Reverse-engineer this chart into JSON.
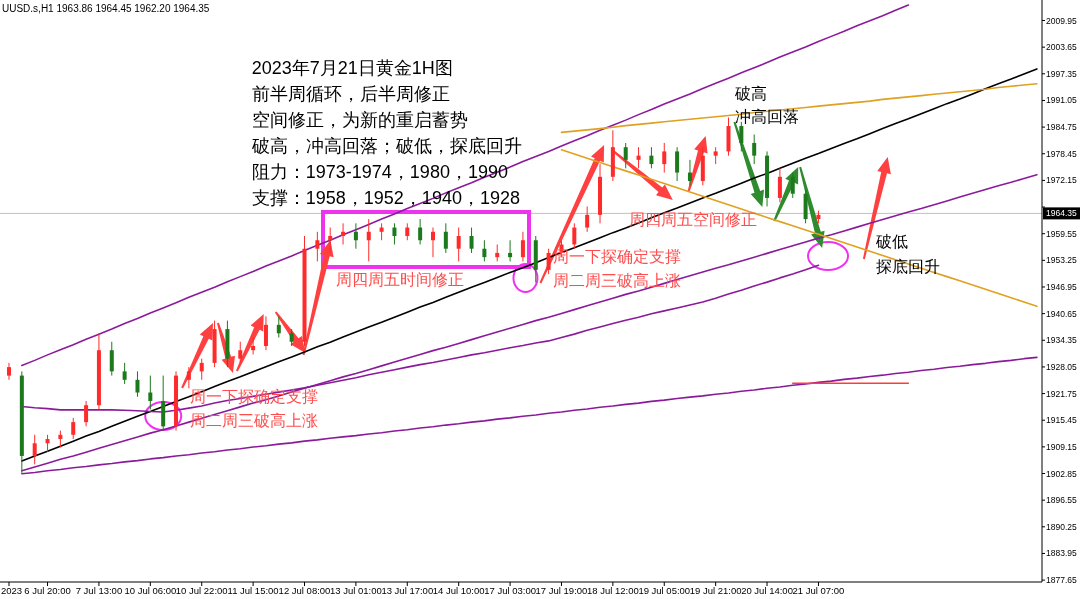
{
  "chart_data": {
    "type": "candlestick",
    "categories": [
      "2023",
      null,
      null,
      "6 Jul 20:00",
      null,
      null,
      null,
      "7 Jul 13:00",
      null,
      null,
      null,
      "10 Jul 06:00",
      null,
      null,
      null,
      "10 Jul 22:00",
      null,
      null,
      null,
      "11 Jul 15:00",
      null,
      null,
      null,
      "12 Jul 08:00",
      null,
      null,
      null,
      "13 Jul 01:00",
      null,
      null,
      null,
      "13 Jul 17:00",
      null,
      null,
      null,
      "14 Jul 10:00",
      null,
      null,
      null,
      "17 Jul 03:00",
      null,
      null,
      null,
      "17 Jul 19:00",
      null,
      null,
      null,
      "18 Jul 12:00",
      null,
      null,
      null,
      "19 Jul 05:00",
      null,
      null,
      null,
      "19 Jul 21:00",
      null,
      null,
      null,
      "20 Jul 14:00",
      null,
      null,
      null,
      "21 Jul 07:00",
      null,
      null,
      null,
      null,
      null,
      null,
      null,
      null,
      null,
      null,
      null,
      null,
      null,
      null,
      null,
      null,
      null
    ],
    "ohlc": [
      [
        1926,
        1929,
        1925,
        1928
      ],
      [
        1926,
        1927,
        1903,
        1907
      ],
      [
        1907,
        1912,
        1905,
        1910
      ],
      [
        1910,
        1912,
        1908,
        1911
      ],
      [
        1911,
        1913,
        1909,
        1912
      ],
      [
        1912,
        1916,
        1911,
        1915
      ],
      [
        1915,
        1920,
        1914,
        1919
      ],
      [
        1919,
        1936,
        1918,
        1932
      ],
      [
        1932,
        1934,
        1926,
        1927
      ],
      [
        1927,
        1929,
        1924,
        1925
      ],
      [
        1925,
        1927,
        1921,
        1922
      ],
      [
        1922,
        1926,
        1918,
        1920
      ],
      [
        1920,
        1926,
        1913,
        1914
      ],
      [
        1914,
        1927,
        1913,
        1926
      ],
      [
        1925,
        1928,
        1923,
        1927
      ],
      [
        1927,
        1930,
        1925,
        1929
      ],
      [
        1929,
        1939,
        1928,
        1937
      ],
      [
        1937,
        1939,
        1928,
        1930
      ],
      [
        1930,
        1934,
        1929,
        1932
      ],
      [
        1932,
        1935,
        1931,
        1933
      ],
      [
        1933,
        1940,
        1932,
        1938
      ],
      [
        1938,
        1940,
        1935,
        1936
      ],
      [
        1936,
        1937,
        1933,
        1934
      ],
      [
        1934,
        1959,
        1933,
        1956
      ],
      [
        1956,
        1960,
        1953,
        1958
      ],
      [
        1958,
        1961,
        1955,
        1959
      ],
      [
        1959,
        1962,
        1957,
        1960
      ],
      [
        1960,
        1962,
        1956,
        1958
      ],
      [
        1958,
        1963,
        1953,
        1960
      ],
      [
        1960,
        1962,
        1958,
        1961
      ],
      [
        1961,
        1962,
        1957,
        1959
      ],
      [
        1959,
        1962,
        1958,
        1961
      ],
      [
        1961,
        1963,
        1957,
        1958
      ],
      [
        1958,
        1961,
        1954,
        1960
      ],
      [
        1960,
        1962,
        1955,
        1956
      ],
      [
        1956,
        1961,
        1953,
        1959
      ],
      [
        1959,
        1961,
        1955,
        1956
      ],
      [
        1956,
        1958,
        1953,
        1954
      ],
      [
        1954,
        1957,
        1953,
        1955
      ],
      [
        1955,
        1958,
        1953,
        1954
      ],
      [
        1954,
        1960,
        1953,
        1958
      ],
      [
        1958,
        1959,
        1948,
        1951
      ],
      [
        1951,
        1956,
        1950,
        1955
      ],
      [
        1955,
        1958,
        1954,
        1957
      ],
      [
        1957,
        1962,
        1956,
        1961
      ],
      [
        1961,
        1966,
        1960,
        1964
      ],
      [
        1964,
        1976,
        1962,
        1973
      ],
      [
        1973,
        1984,
        1972,
        1980
      ],
      [
        1980,
        1981,
        1975,
        1977
      ],
      [
        1977,
        1980,
        1975,
        1978
      ],
      [
        1978,
        1980,
        1975,
        1976
      ],
      [
        1976,
        1981,
        1974,
        1979
      ],
      [
        1979,
        1980,
        1972,
        1974
      ],
      [
        1974,
        1977,
        1971,
        1972
      ],
      [
        1972,
        1980,
        1971,
        1978
      ],
      [
        1978,
        1980,
        1976,
        1979
      ],
      [
        1979,
        1987,
        1978,
        1985
      ],
      [
        1985,
        1986,
        1979,
        1981
      ],
      [
        1981,
        1983,
        1976,
        1978
      ],
      [
        1978,
        1979,
        1966,
        1968
      ],
      [
        1968,
        1975,
        1967,
        1973
      ],
      [
        1973,
        1974,
        1968,
        1969
      ],
      [
        1969,
        1970,
        1962,
        1963
      ],
      [
        1963,
        1965,
        1962,
        1964
      ],
      null,
      null,
      null,
      null,
      null,
      null,
      null,
      null,
      null,
      null,
      null,
      null,
      null,
      null,
      null,
      null,
      null
    ],
    "series": [
      {
        "type": "line",
        "color": "#8b1a9b",
        "values": [
          null,
          1928.4,
          1929.6,
          1930.9,
          1932.1,
          1933.3,
          1934.6,
          1935.8,
          1937.0,
          1938.3,
          1939.5,
          1940.8,
          1942.0,
          1943.2,
          1944.5,
          1945.7,
          1946.9,
          1948.2,
          1949.4,
          1950.6,
          1951.9,
          1953.1,
          1954.3,
          1955.6,
          1956.8,
          1958.0,
          1959.3,
          1960.5,
          1961.7,
          1963.0,
          1964.2,
          1965.5,
          1966.7,
          1967.9,
          1969.2,
          1970.4,
          1971.6,
          1972.9,
          1974.1,
          1975.3,
          1976.6,
          1977.8,
          1979.0,
          1980.3,
          1981.5,
          1982.7,
          1984.0,
          1985.2,
          1986.4,
          1987.7,
          1988.9,
          1990.2,
          1991.4,
          1992.6,
          1993.9,
          1995.1,
          1996.3,
          1997.6,
          1998.8,
          2000.0,
          2001.3,
          2002.5,
          2003.7,
          2005.0,
          2006.2,
          2007.4,
          2008.7,
          2009.9,
          2011.1,
          2012.4,
          2013.6,
          null,
          null,
          null,
          null,
          null,
          null,
          null,
          null,
          null,
          null
        ]
      },
      {
        "type": "line",
        "color": "#000000",
        "values": [
          null,
          1905.8,
          1907.0,
          1908.1,
          1909.3,
          1910.5,
          1911.7,
          1912.8,
          1914.0,
          1915.2,
          1916.4,
          1917.5,
          1918.7,
          1919.9,
          1921.0,
          1922.2,
          1923.4,
          1924.6,
          1925.7,
          1926.9,
          1928.1,
          1929.3,
          1930.4,
          1931.6,
          1932.8,
          1933.9,
          1935.1,
          1936.3,
          1937.5,
          1938.6,
          1939.8,
          1941.0,
          1942.2,
          1943.3,
          1944.5,
          1945.7,
          1946.9,
          1948.0,
          1949.2,
          1950.4,
          1951.5,
          1952.7,
          1953.9,
          1955.1,
          1956.2,
          1957.4,
          1958.6,
          1959.8,
          1960.9,
          1962.1,
          1963.3,
          1964.5,
          1965.6,
          1966.8,
          1968.0,
          1969.1,
          1970.3,
          1971.5,
          1972.7,
          1973.8,
          1975.0,
          1976.2,
          1977.4,
          1978.5,
          1979.7,
          1980.9,
          1982.0,
          1983.2,
          1984.4,
          1985.6,
          1986.7,
          1987.9,
          1989.1,
          1990.3,
          1991.4,
          1992.6,
          1993.8,
          1995.0,
          1996.1,
          1997.3,
          1998.5
        ]
      },
      {
        "type": "line",
        "color": "#8b1a9b",
        "values": [
          null,
          1903.5,
          1904.4,
          1905.3,
          1906.2,
          1907.0,
          1907.9,
          1908.8,
          1909.7,
          1910.6,
          1911.5,
          1912.4,
          1913.2,
          1914.1,
          1915.0,
          1915.9,
          1916.8,
          1917.7,
          1918.6,
          1919.5,
          1920.3,
          1921.2,
          1922.1,
          1923.0,
          1923.9,
          1924.8,
          1925.7,
          1926.5,
          1927.4,
          1928.3,
          1929.2,
          1930.1,
          1931.0,
          1931.9,
          1932.7,
          1933.6,
          1934.5,
          1935.4,
          1936.3,
          1937.2,
          1938.1,
          1939.0,
          1939.8,
          1940.7,
          1941.6,
          1942.5,
          1943.4,
          1944.3,
          1945.2,
          1946.0,
          1946.9,
          1947.8,
          1948.7,
          1949.6,
          1950.5,
          1951.4,
          1952.2,
          1953.1,
          1954.0,
          1954.9,
          1955.8,
          1956.7,
          1957.6,
          1958.5,
          1959.3,
          1960.2,
          1961.1,
          1962.0,
          1962.9,
          1963.8,
          1964.7,
          1965.5,
          1966.4,
          1967.3,
          1968.2,
          1969.1,
          1970.0,
          1970.9,
          1971.7,
          1972.6,
          1973.5
        ]
      },
      {
        "type": "line",
        "color": "#8b1a9b",
        "values": [
          null,
          1902.8,
          1903.1,
          1903.5,
          1903.8,
          1904.2,
          1904.5,
          1904.9,
          1905.2,
          1905.6,
          1905.9,
          1906.3,
          1906.6,
          1907.0,
          1907.3,
          1907.7,
          1908.0,
          1908.4,
          1908.7,
          1909.1,
          1909.4,
          1909.8,
          1910.1,
          1910.5,
          1910.8,
          1911.2,
          1911.5,
          1911.8,
          1912.2,
          1912.5,
          1912.9,
          1913.2,
          1913.6,
          1913.9,
          1914.3,
          1914.6,
          1915.0,
          1915.3,
          1915.7,
          1916.0,
          1916.4,
          1916.7,
          1917.1,
          1917.4,
          1917.8,
          1918.1,
          1918.5,
          1918.8,
          1919.2,
          1919.5,
          1919.9,
          1920.2,
          1920.6,
          1920.9,
          1921.2,
          1921.6,
          1921.9,
          1922.3,
          1922.6,
          1923.0,
          1923.3,
          1923.7,
          1924.0,
          1924.4,
          1924.7,
          1925.1,
          1925.4,
          1925.8,
          1926.1,
          1926.5,
          1926.8,
          1927.2,
          1927.5,
          1927.9,
          1928.2,
          1928.6,
          1928.9,
          1929.3,
          1929.6,
          1930.0,
          1930.3
        ]
      },
      {
        "type": "line",
        "color": "#8b1a9b",
        "values": [
          null,
          1918.7,
          1918.4,
          1918.2,
          1917.9,
          1917.9,
          1917.9,
          1917.9,
          1917.9,
          1917.8,
          1917.7,
          1917.5,
          1917.4,
          1917.8,
          1918.3,
          1918.8,
          1919.5,
          1920.1,
          1920.6,
          1921.1,
          1921.6,
          1922.1,
          1922.6,
          1923.1,
          1923.7,
          1924.3,
          1924.9,
          1925.5,
          1926.2,
          1926.8,
          1927.4,
          1928.0,
          1928.6,
          1929.1,
          1929.7,
          1930.3,
          1930.9,
          1931.4,
          1932.0,
          1932.6,
          1933.1,
          1933.7,
          1934.2,
          1935.0,
          1935.8,
          1936.7,
          1937.5,
          1938.3,
          1939.1,
          1939.8,
          1940.6,
          1941.3,
          1942.0,
          1942.7,
          1943.4,
          1944.3,
          1945.3,
          1946.2,
          1947.2,
          1948.1,
          1949.1,
          1950.0,
          1951.0,
          1952.1,
          null,
          null,
          null,
          null,
          null,
          null,
          null,
          null,
          null,
          null,
          null,
          null,
          null,
          null,
          null,
          null,
          null
        ]
      },
      {
        "type": "line",
        "color": "#e0a020",
        "values": [
          null,
          null,
          null,
          null,
          null,
          null,
          null,
          null,
          null,
          null,
          null,
          null,
          null,
          null,
          null,
          null,
          null,
          null,
          null,
          null,
          null,
          null,
          null,
          null,
          null,
          null,
          null,
          null,
          null,
          null,
          null,
          null,
          null,
          null,
          null,
          null,
          null,
          null,
          null,
          null,
          null,
          null,
          null,
          1983.5,
          1983.8,
          1984.1,
          1984.4,
          1984.7,
          1985.1,
          1985.4,
          1985.7,
          1986.0,
          1986.3,
          1986.6,
          1986.9,
          1987.2,
          1987.5,
          1987.8,
          1988.2,
          1988.5,
          1988.8,
          1989.1,
          1989.4,
          1989.7,
          1990.0,
          1990.3,
          1990.6,
          1990.9,
          1991.3,
          1991.6,
          1991.9,
          1992.2,
          1992.5,
          1992.8,
          1993.1,
          1993.4,
          1993.7,
          1994.1,
          1994.4,
          1994.7,
          1995.0
        ]
      },
      {
        "type": "line",
        "color": "#e0a020",
        "values": [
          null,
          null,
          null,
          null,
          null,
          null,
          null,
          null,
          null,
          null,
          null,
          null,
          null,
          null,
          null,
          null,
          null,
          null,
          null,
          null,
          null,
          null,
          null,
          null,
          null,
          null,
          null,
          null,
          null,
          null,
          null,
          null,
          null,
          null,
          null,
          null,
          null,
          null,
          null,
          null,
          null,
          null,
          null,
          1979.4,
          1978.4,
          1977.4,
          1976.4,
          1975.4,
          1974.4,
          1973.4,
          1972.4,
          1971.4,
          1970.4,
          1969.4,
          1968.4,
          1967.4,
          1966.4,
          1965.4,
          1964.4,
          1963.4,
          1962.4,
          1961.4,
          1960.4,
          1959.4,
          1958.4,
          1957.4,
          1956.4,
          1955.4,
          1954.4,
          1953.4,
          1952.4,
          1951.4,
          1950.4,
          1949.4,
          1948.4,
          1947.4,
          1946.4,
          1945.4,
          1944.4,
          1943.4,
          1942.4
        ]
      },
      {
        "type": "line",
        "color": "#ff3b3b",
        "values": [
          null,
          null,
          null,
          null,
          null,
          null,
          null,
          null,
          null,
          null,
          null,
          null,
          null,
          null,
          null,
          null,
          null,
          null,
          null,
          null,
          null,
          null,
          null,
          null,
          null,
          null,
          null,
          null,
          null,
          null,
          null,
          null,
          null,
          null,
          null,
          null,
          null,
          null,
          null,
          null,
          null,
          null,
          null,
          null,
          null,
          null,
          null,
          null,
          null,
          null,
          null,
          null,
          null,
          null,
          null,
          null,
          null,
          null,
          null,
          null,
          null,
          1924.2,
          1924.2,
          1924.2,
          1924.2,
          1924.2,
          1924.2,
          1924.2,
          1924.2,
          1924.2,
          1924.2,
          null,
          null,
          null,
          null,
          null,
          null,
          null,
          null,
          null,
          null
        ]
      }
    ],
    "ref_lines": [
      {
        "axis": "y",
        "value": 1964.35,
        "label": "1964.35",
        "color": "#c0c0c0"
      }
    ],
    "ylim": [
      1877.2,
      2014.8
    ],
    "yticks": [
      1877.65,
      1883.95,
      1890.25,
      1896.55,
      1902.85,
      1909.15,
      1915.45,
      1921.75,
      1928.05,
      1934.35,
      1940.65,
      1946.95,
      1953.25,
      1959.55,
      {
        "value": 1965.85,
        "label": null
      },
      1972.15,
      1978.45,
      1984.75,
      1991.05,
      1997.35,
      2003.65,
      2009.95
    ],
    "annotations": [
      "UUSD.s,H1  1963.86 1964.45 1962.20 1964.35",
      "2023年7月21日黄金1H图",
      "前半周循环，后半周修正",
      "空间修正，为新的重启蓄势",
      "破高，冲高回落；破低，探底回升",
      "阻力：1973-1974，1980，1990",
      "支撑：1958，1952，1940，1928",
      "周四周五时间修正",
      "周一下探确定支撑",
      "周二周三破高上涨",
      "周一下探确定支撑",
      "周二周三破高上涨",
      "周四周五空间修正",
      "破高",
      "冲高回落",
      "破低",
      "探底回升"
    ]
  }
}
